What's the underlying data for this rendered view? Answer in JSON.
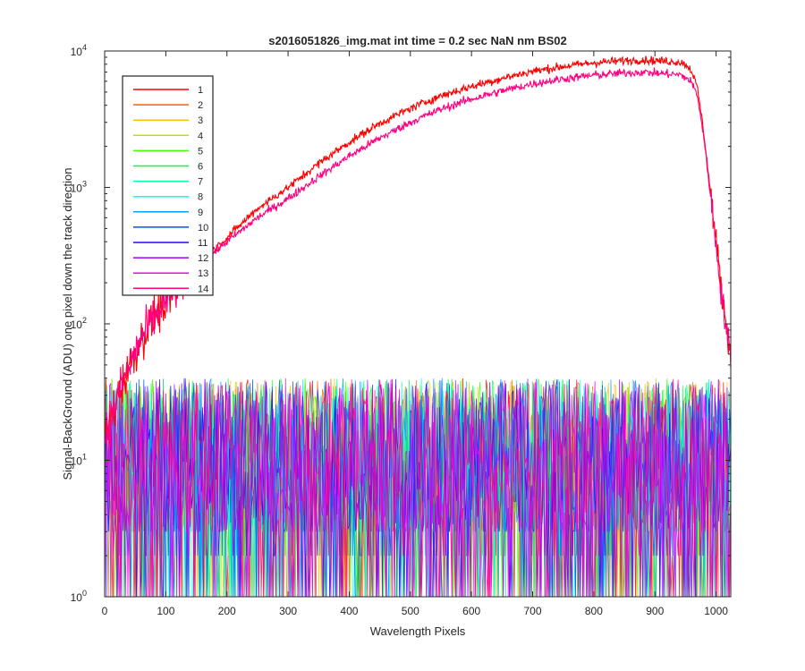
{
  "chart_data": {
    "type": "line",
    "title": "s2016051826_img.mat int time = 0.2 sec  NaN nm BS02",
    "xlabel": "Wavelength Pixels",
    "ylabel": "Signal-BackGround (ADU) one pixel down the track direction",
    "xlim": [
      0,
      1024
    ],
    "ylim": [
      1,
      10000
    ],
    "yscale": "log",
    "grid": false,
    "legend_location": "top-left",
    "x_ticks": [
      "0",
      "100",
      "200",
      "300",
      "400",
      "500",
      "600",
      "700",
      "800",
      "900",
      "1000"
    ],
    "x_tick_values": [
      0,
      100,
      200,
      300,
      400,
      500,
      600,
      700,
      800,
      900,
      1000
    ],
    "y_ticks": [
      {
        "base": "10",
        "exp": "0",
        "value": 1
      },
      {
        "base": "10",
        "exp": "1",
        "value": 10
      },
      {
        "base": "10",
        "exp": "2",
        "value": 100
      },
      {
        "base": "10",
        "exp": "3",
        "value": 1000
      },
      {
        "base": "10",
        "exp": "4",
        "value": 10000
      }
    ],
    "signal_curves": [
      {
        "series": "1",
        "points": [
          [
            0,
            15
          ],
          [
            10,
            20
          ],
          [
            20,
            28
          ],
          [
            30,
            38
          ],
          [
            40,
            48
          ],
          [
            50,
            62
          ],
          [
            60,
            78
          ],
          [
            70,
            92
          ],
          [
            80,
            108
          ],
          [
            100,
            148
          ],
          [
            120,
            188
          ],
          [
            150,
            265
          ],
          [
            200,
            430
          ],
          [
            250,
            700
          ],
          [
            300,
            1000
          ],
          [
            350,
            1500
          ],
          [
            400,
            2150
          ],
          [
            450,
            2950
          ],
          [
            500,
            3800
          ],
          [
            550,
            4700
          ],
          [
            600,
            5500
          ],
          [
            650,
            6300
          ],
          [
            700,
            7100
          ],
          [
            750,
            7700
          ],
          [
            800,
            8200
          ],
          [
            850,
            8500
          ],
          [
            880,
            8600
          ],
          [
            900,
            8500
          ],
          [
            920,
            8400
          ],
          [
            940,
            8300
          ],
          [
            950,
            8000
          ],
          [
            960,
            7200
          ],
          [
            970,
            5200
          ],
          [
            980,
            2500
          ],
          [
            990,
            1000
          ],
          [
            1000,
            400
          ],
          [
            1010,
            160
          ],
          [
            1020,
            80
          ],
          [
            1024,
            55
          ]
        ]
      },
      {
        "series": "14",
        "points": [
          [
            0,
            15
          ],
          [
            10,
            20
          ],
          [
            20,
            28
          ],
          [
            30,
            38
          ],
          [
            40,
            48
          ],
          [
            50,
            62
          ],
          [
            60,
            78
          ],
          [
            70,
            92
          ],
          [
            80,
            108
          ],
          [
            100,
            148
          ],
          [
            120,
            188
          ],
          [
            150,
            260
          ],
          [
            200,
            400
          ],
          [
            250,
            600
          ],
          [
            300,
            830
          ],
          [
            350,
            1200
          ],
          [
            400,
            1700
          ],
          [
            450,
            2300
          ],
          [
            500,
            3000
          ],
          [
            550,
            3750
          ],
          [
            600,
            4450
          ],
          [
            650,
            5100
          ],
          [
            700,
            5750
          ],
          [
            750,
            6250
          ],
          [
            800,
            6650
          ],
          [
            850,
            6900
          ],
          [
            880,
            7000
          ],
          [
            900,
            6900
          ],
          [
            920,
            6800
          ],
          [
            940,
            6700
          ],
          [
            950,
            6400
          ],
          [
            960,
            5900
          ],
          [
            970,
            4600
          ],
          [
            980,
            2300
          ],
          [
            990,
            950
          ],
          [
            1000,
            380
          ],
          [
            1010,
            150
          ],
          [
            1020,
            75
          ],
          [
            1024,
            50
          ]
        ]
      }
    ],
    "noise_band": {
      "x_range": [
        0,
        1024
      ],
      "typical_range": [
        2,
        40
      ],
      "floor": 1
    },
    "series": [
      {
        "name": "1",
        "color": "#ff0000"
      },
      {
        "name": "2",
        "color": "#ff6000"
      },
      {
        "name": "3",
        "color": "#ffc000"
      },
      {
        "name": "4",
        "color": "#c0e000"
      },
      {
        "name": "5",
        "color": "#40ff00"
      },
      {
        "name": "6",
        "color": "#00ff40"
      },
      {
        "name": "7",
        "color": "#00ffa0"
      },
      {
        "name": "8",
        "color": "#00ffff"
      },
      {
        "name": "9",
        "color": "#00a0ff"
      },
      {
        "name": "10",
        "color": "#0050ff"
      },
      {
        "name": "11",
        "color": "#3000ff"
      },
      {
        "name": "12",
        "color": "#a000ff"
      },
      {
        "name": "13",
        "color": "#ff00ff"
      },
      {
        "name": "14",
        "color": "#ff0080"
      }
    ]
  }
}
